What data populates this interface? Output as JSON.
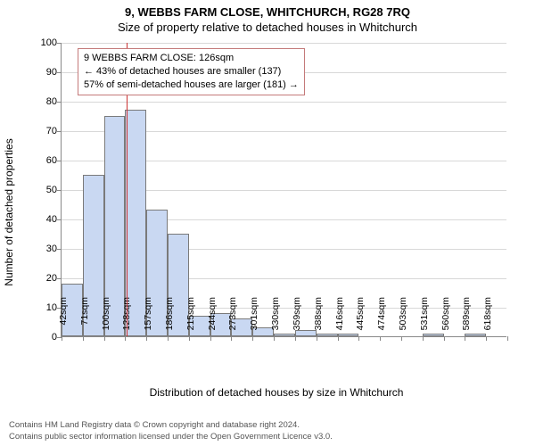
{
  "title": "9, WEBBS FARM CLOSE, WHITCHURCH, RG28 7RQ",
  "subtitle": "Size of property relative to detached houses in Whitchurch",
  "y_axis_label": "Number of detached properties",
  "x_axis_label": "Distribution of detached houses by size in Whitchurch",
  "chart": {
    "type": "histogram",
    "ylim": [
      0,
      100
    ],
    "ytick_step": 10,
    "background_color": "#ffffff",
    "grid_color": "#d8d8d8",
    "axis_color": "#888888",
    "bar_fill": "#c9d8f2",
    "bar_border": "#7a7a7a",
    "bar_width_ratio": 1.0,
    "x_ticks": [
      "42sqm",
      "71sqm",
      "100sqm",
      "128sqm",
      "157sqm",
      "186sqm",
      "215sqm",
      "244sqm",
      "273sqm",
      "301sqm",
      "330sqm",
      "359sqm",
      "388sqm",
      "416sqm",
      "445sqm",
      "474sqm",
      "503sqm",
      "531sqm",
      "560sqm",
      "589sqm",
      "618sqm"
    ],
    "values": [
      18,
      55,
      75,
      77,
      43,
      35,
      7,
      8,
      6,
      3,
      1,
      2,
      1,
      1,
      0,
      0,
      0,
      1,
      0,
      1,
      0
    ],
    "marker": {
      "x_value": 126,
      "x_min": 42,
      "x_max": 618,
      "color": "#cc3333"
    }
  },
  "info_box": {
    "border_color": "#c47a7a",
    "lines": [
      "9 WEBBS FARM CLOSE: 126sqm",
      "← 43% of detached houses are smaller (137)",
      "57% of semi-detached houses are larger (181) →"
    ]
  },
  "footer": {
    "line1": "Contains HM Land Registry data © Crown copyright and database right 2024.",
    "line2": "Contains public sector information licensed under the Open Government Licence v3.0."
  }
}
